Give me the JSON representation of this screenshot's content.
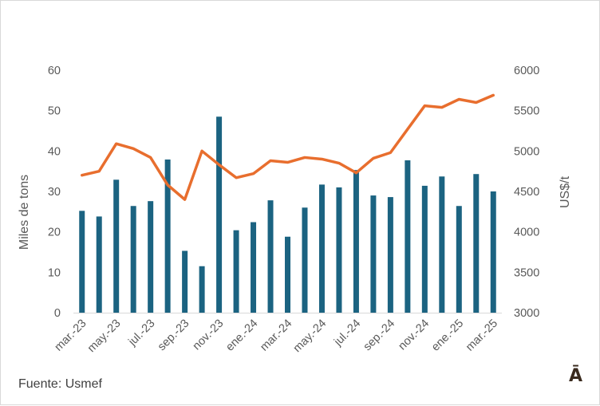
{
  "source": "Fuente: Usmef",
  "logo_text": "Ā",
  "colors": {
    "bars": "#1b6381",
    "line": "#e86e2e",
    "text": "#595959"
  },
  "chart_data": {
    "type": "bar+line",
    "title": "",
    "categories": [
      "mar.-23",
      "abr.-23",
      "may.-23",
      "jun.-23",
      "jul.-23",
      "ago.-23",
      "sep.-23",
      "oct.-23",
      "nov.-23",
      "dic.-23",
      "ene.-24",
      "feb.-24",
      "mar.-24",
      "abr.-24",
      "may.-24",
      "jun.-24",
      "jul.-24",
      "ago.-24",
      "sep.-24",
      "oct.-24",
      "nov.-24",
      "dic.-24",
      "ene.-25",
      "feb.-25",
      "mar.-25"
    ],
    "x_tick_labels": [
      "mar.-23",
      "may.-23",
      "jul.-23",
      "sep.-23",
      "nov.-23",
      "ene.-24",
      "mar.-24",
      "may.-24",
      "jul.-24",
      "sep.-24",
      "nov.-24",
      "ene.-25",
      "mar.-25"
    ],
    "y_left": {
      "label": "Miles de tons",
      "range": [
        0,
        60
      ],
      "ticks": [
        0,
        10,
        20,
        30,
        40,
        50,
        60
      ]
    },
    "y_right": {
      "label": "US$/t",
      "range": [
        3000,
        6000
      ],
      "ticks": [
        3000,
        3500,
        4000,
        4500,
        5000,
        5500,
        6000
      ]
    },
    "grid": false,
    "legend": "none",
    "series": [
      {
        "type": "bar",
        "axis": "left",
        "values": [
          25.2,
          23.8,
          32.9,
          26.4,
          27.6,
          37.9,
          15.3,
          11.5,
          48.5,
          20.4,
          22.4,
          27.8,
          18.8,
          26.0,
          31.7,
          31.0,
          35.3,
          29.0,
          28.6,
          37.7,
          31.4,
          33.7,
          26.4,
          34.3,
          30.0
        ]
      },
      {
        "type": "line",
        "axis": "right",
        "values": [
          4700,
          4750,
          5090,
          5030,
          4920,
          4580,
          4400,
          5000,
          4830,
          4670,
          4720,
          4880,
          4860,
          4920,
          4900,
          4850,
          4730,
          4910,
          4980,
          5270,
          5560,
          5540,
          5640,
          5600,
          5690
        ]
      }
    ]
  }
}
